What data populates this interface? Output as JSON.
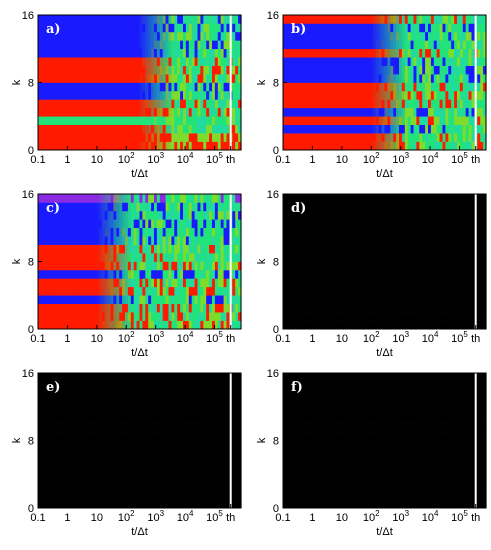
{
  "chart_data": [
    {
      "type": "heatmap",
      "panel_label": "a)",
      "xlabel": "t/Δt",
      "ylabel": "k",
      "x_ticks": [
        "0.1",
        "1",
        "10",
        "10^2",
        "10^3",
        "10^4",
        "10^5",
        "th"
      ],
      "y_ticks": [
        "0",
        "8",
        "16"
      ],
      "xlim_log10": [
        -1,
        5.9
      ],
      "ylim": [
        0,
        16
      ],
      "mix_time_log10": 3.0,
      "thermal_marker_log10": 5.55,
      "rows_bottom_to_top": [
        "red",
        "red",
        "red",
        "green",
        "red",
        "red",
        "blue",
        "blue",
        "red",
        "red",
        "red",
        "blue",
        "blue",
        "blue",
        "blue",
        "blue"
      ]
    },
    {
      "type": "heatmap",
      "panel_label": "b)",
      "xlabel": "t/Δt",
      "ylabel": "k",
      "x_ticks": [
        "0.1",
        "1",
        "10",
        "10^2",
        "10^3",
        "10^4",
        "10^5",
        "th"
      ],
      "y_ticks": [
        "0",
        "8",
        "16"
      ],
      "xlim_log10": [
        -1,
        5.9
      ],
      "ylim": [
        0,
        16
      ],
      "mix_time_log10": 2.6,
      "thermal_marker_log10": 5.55,
      "rows_bottom_to_top": [
        "red",
        "red",
        "blue",
        "red",
        "blue",
        "red",
        "red",
        "red",
        "blue",
        "blue",
        "blue",
        "red",
        "blue",
        "blue",
        "blue",
        "red"
      ]
    },
    {
      "type": "heatmap",
      "panel_label": "c)",
      "xlabel": "t/Δt",
      "ylabel": "k",
      "x_ticks": [
        "0.1",
        "1",
        "10",
        "10^2",
        "10^3",
        "10^4",
        "10^5",
        "th"
      ],
      "y_ticks": [
        "0",
        "8",
        "16"
      ],
      "xlim_log10": [
        -1,
        5.9
      ],
      "ylim": [
        0,
        16
      ],
      "mix_time_log10": 1.6,
      "thermal_marker_log10": 5.55,
      "rows_bottom_to_top": [
        "red",
        "red",
        "red",
        "blue",
        "red",
        "red",
        "blue",
        "red",
        "red",
        "red",
        "blue",
        "blue",
        "blue",
        "blue",
        "blue",
        "purple"
      ]
    },
    {
      "type": "heatmap",
      "panel_label": "d)",
      "xlabel": "t/Δt",
      "ylabel": "k",
      "x_ticks": [
        "0.1",
        "1",
        "10",
        "10^2",
        "10^3",
        "10^4",
        "10^5",
        "th"
      ],
      "y_ticks": [
        "0",
        "8",
        "16"
      ],
      "xlim_log10": [
        -1,
        5.9
      ],
      "ylim": [
        0,
        16
      ],
      "mix_time_log10": 1.0,
      "thermal_marker_log10": 5.55,
      "rows_bottom_to_top": [
        "red",
        "red",
        "blue",
        "red",
        "blue",
        "red",
        "red",
        "blue",
        "blue",
        "blue",
        "red",
        "blue",
        "blue",
        "red",
        "blue",
        "blue"
      ]
    },
    {
      "type": "heatmap",
      "panel_label": "e)",
      "xlabel": "t/Δt",
      "ylabel": "k",
      "x_ticks": [
        "0.1",
        "1",
        "10",
        "10^2",
        "10^3",
        "10^4",
        "10^5",
        "th"
      ],
      "y_ticks": [
        "0",
        "8",
        "16"
      ],
      "xlim_log10": [
        -1,
        5.9
      ],
      "ylim": [
        0,
        16
      ],
      "mix_time_log10": 0.9,
      "thermal_marker_log10": 5.55,
      "rows_bottom_to_top": [
        "red",
        "red",
        "blue",
        "red",
        "blue",
        "red",
        "blue",
        "blue",
        "blue",
        "red",
        "blue",
        "blue",
        "blue",
        "blue",
        "blue",
        "blue"
      ]
    },
    {
      "type": "heatmap",
      "panel_label": "f)",
      "xlabel": "t/Δt",
      "ylabel": "k",
      "x_ticks": [
        "0.1",
        "1",
        "10",
        "10^2",
        "10^3",
        "10^4",
        "10^5",
        "th"
      ],
      "y_ticks": [
        "0",
        "8",
        "16"
      ],
      "xlim_log10": [
        -1,
        5.9
      ],
      "ylim": [
        0,
        16
      ],
      "mix_time_log10": 0.85,
      "thermal_marker_log10": 5.55,
      "rows_bottom_to_top": [
        "red",
        "red",
        "blue",
        "red",
        "blue",
        "red",
        "blue",
        "blue",
        "red",
        "blue",
        "blue",
        "blue",
        "blue",
        "red",
        "blue",
        "red"
      ]
    }
  ],
  "colors": {
    "red": "#ff1a00",
    "blue": "#1a1aff",
    "purple": "#8a2be2",
    "green": "#22e37a",
    "teal": "#22d9a0",
    "yellow_green": "#7fdc2a",
    "marker": "#ffffff"
  }
}
